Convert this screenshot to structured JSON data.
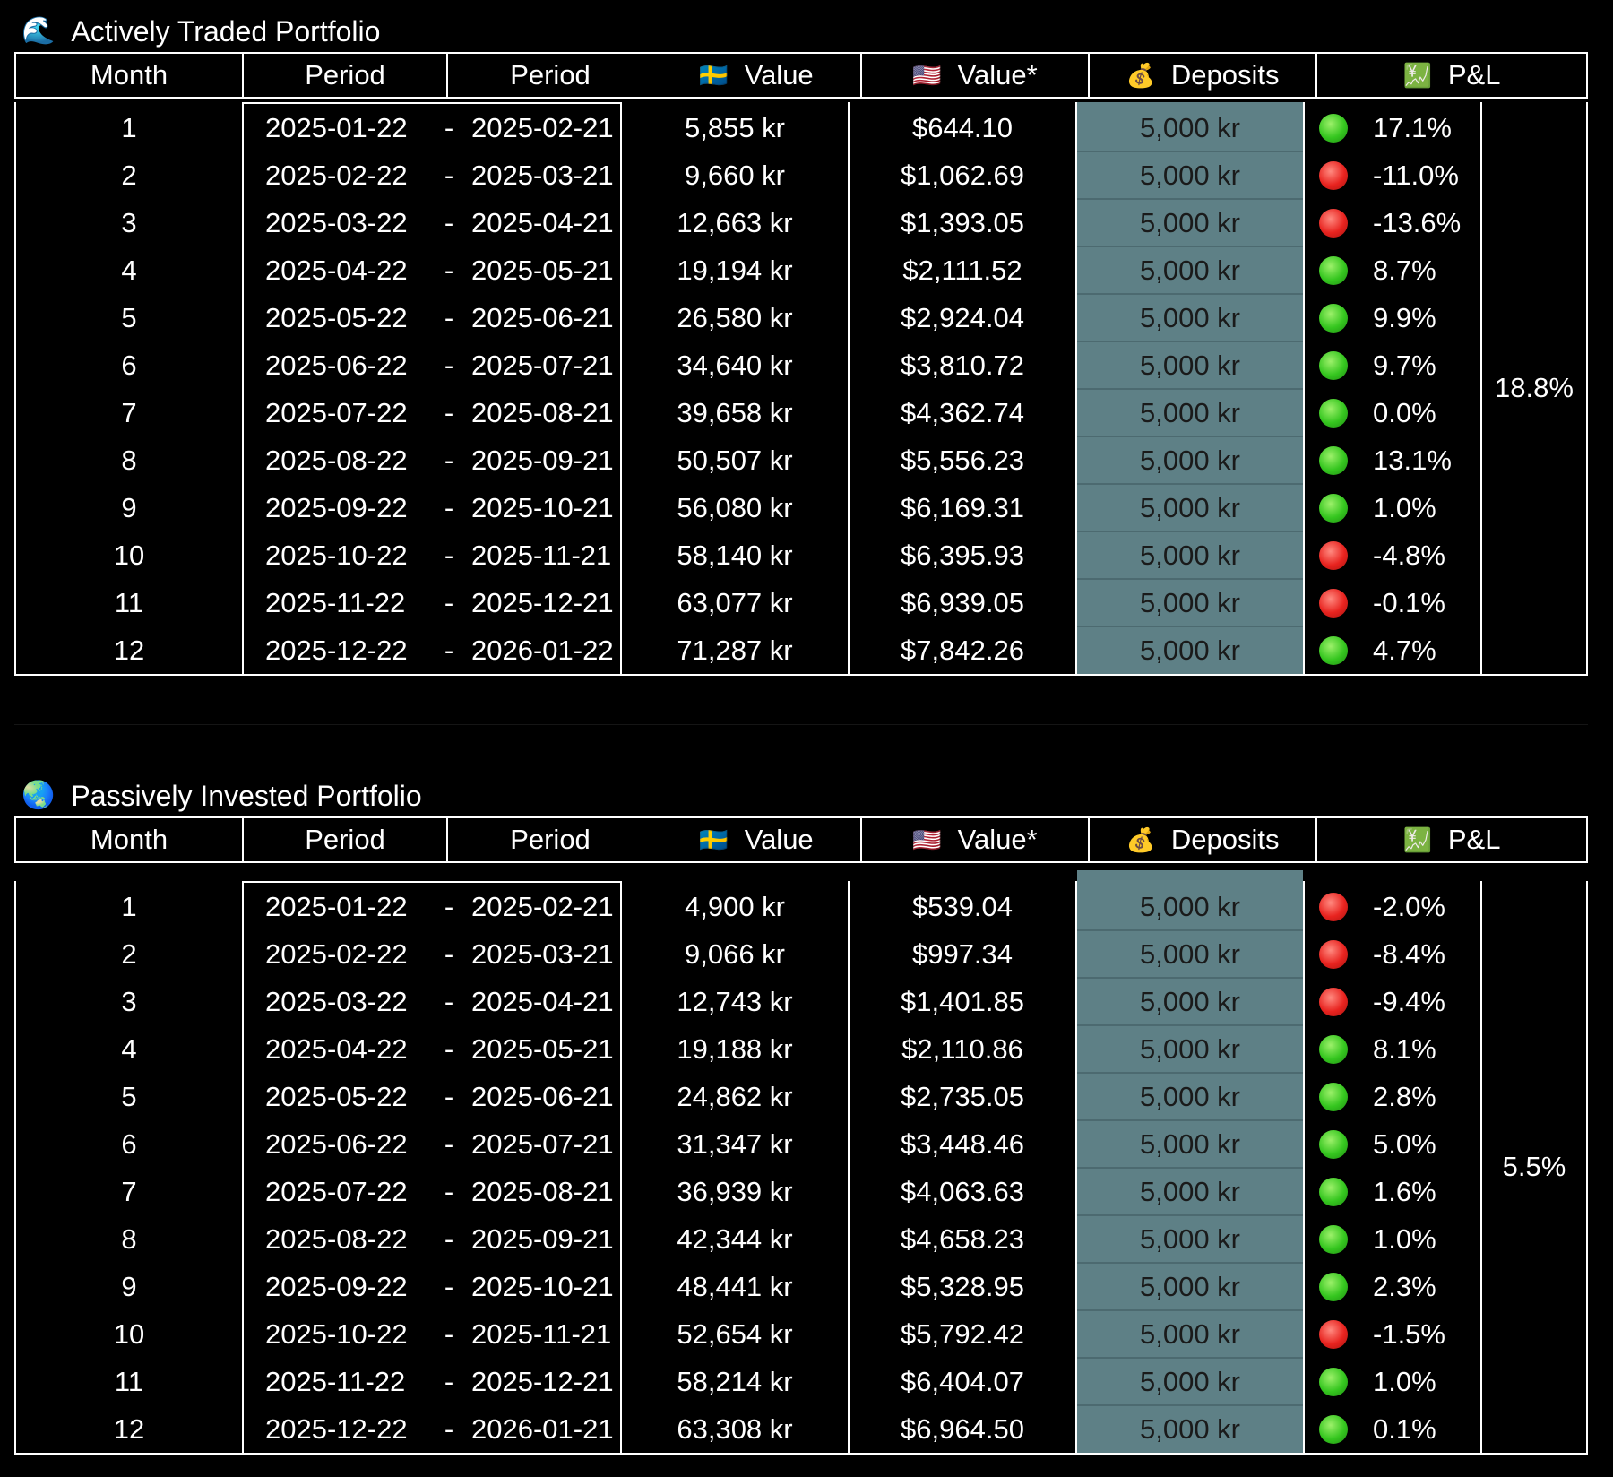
{
  "colors": {
    "background": "#000000",
    "deposit_fill": "#5e8086",
    "gain": "#35c61f",
    "loss": "#e8231f"
  },
  "header": {
    "month": "Month",
    "period_start": "Period",
    "period_end": "Period",
    "value_sek": "Value",
    "value_usd": "Value*",
    "deposits": "Deposits",
    "pnl": "P&L",
    "flag_se": "🇸🇪",
    "flag_us": "🇺🇸",
    "money_bag": "💰",
    "chart_icon": "💹"
  },
  "active": {
    "icon": "🌊",
    "title": "Actively Traded Portfolio",
    "total": "18.8%",
    "rows": [
      {
        "month": "1",
        "start": "2025-01-22",
        "sep": "-",
        "end": "2025-02-21",
        "sek": "5,855 kr",
        "usd": "$644.10",
        "dep": "5,000 kr",
        "status": "green",
        "pnl": "17.1%"
      },
      {
        "month": "2",
        "start": "2025-02-22",
        "sep": "-",
        "end": "2025-03-21",
        "sek": "9,660 kr",
        "usd": "$1,062.69",
        "dep": "5,000 kr",
        "status": "red",
        "pnl": "-11.0%"
      },
      {
        "month": "3",
        "start": "2025-03-22",
        "sep": "-",
        "end": "2025-04-21",
        "sek": "12,663 kr",
        "usd": "$1,393.05",
        "dep": "5,000 kr",
        "status": "red",
        "pnl": "-13.6%"
      },
      {
        "month": "4",
        "start": "2025-04-22",
        "sep": "-",
        "end": "2025-05-21",
        "sek": "19,194 kr",
        "usd": "$2,111.52",
        "dep": "5,000 kr",
        "status": "green",
        "pnl": "8.7%"
      },
      {
        "month": "5",
        "start": "2025-05-22",
        "sep": "-",
        "end": "2025-06-21",
        "sek": "26,580 kr",
        "usd": "$2,924.04",
        "dep": "5,000 kr",
        "status": "green",
        "pnl": "9.9%"
      },
      {
        "month": "6",
        "start": "2025-06-22",
        "sep": "-",
        "end": "2025-07-21",
        "sek": "34,640 kr",
        "usd": "$3,810.72",
        "dep": "5,000 kr",
        "status": "green",
        "pnl": "9.7%"
      },
      {
        "month": "7",
        "start": "2025-07-22",
        "sep": "-",
        "end": "2025-08-21",
        "sek": "39,658 kr",
        "usd": "$4,362.74",
        "dep": "5,000 kr",
        "status": "green",
        "pnl": "0.0%"
      },
      {
        "month": "8",
        "start": "2025-08-22",
        "sep": "-",
        "end": "2025-09-21",
        "sek": "50,507 kr",
        "usd": "$5,556.23",
        "dep": "5,000 kr",
        "status": "green",
        "pnl": "13.1%"
      },
      {
        "month": "9",
        "start": "2025-09-22",
        "sep": "-",
        "end": "2025-10-21",
        "sek": "56,080 kr",
        "usd": "$6,169.31",
        "dep": "5,000 kr",
        "status": "green",
        "pnl": "1.0%"
      },
      {
        "month": "10",
        "start": "2025-10-22",
        "sep": "-",
        "end": "2025-11-21",
        "sek": "58,140 kr",
        "usd": "$6,395.93",
        "dep": "5,000 kr",
        "status": "red",
        "pnl": "-4.8%"
      },
      {
        "month": "11",
        "start": "2025-11-22",
        "sep": "-",
        "end": "2025-12-21",
        "sek": "63,077 kr",
        "usd": "$6,939.05",
        "dep": "5,000 kr",
        "status": "red",
        "pnl": "-0.1%"
      },
      {
        "month": "12",
        "start": "2025-12-22",
        "sep": "-",
        "end": "2026-01-22",
        "sek": "71,287 kr",
        "usd": "$7,842.26",
        "dep": "5,000 kr",
        "status": "green",
        "pnl": "4.7%"
      }
    ]
  },
  "passive": {
    "icon": "🌏",
    "title": "Passively Invested Portfolio",
    "total": "5.5%",
    "rows": [
      {
        "month": "1",
        "start": "2025-01-22",
        "sep": "-",
        "end": "2025-02-21",
        "sek": "4,900 kr",
        "usd": "$539.04",
        "dep": "5,000 kr",
        "status": "red",
        "pnl": "-2.0%"
      },
      {
        "month": "2",
        "start": "2025-02-22",
        "sep": "-",
        "end": "2025-03-21",
        "sek": "9,066 kr",
        "usd": "$997.34",
        "dep": "5,000 kr",
        "status": "red",
        "pnl": "-8.4%"
      },
      {
        "month": "3",
        "start": "2025-03-22",
        "sep": "-",
        "end": "2025-04-21",
        "sek": "12,743 kr",
        "usd": "$1,401.85",
        "dep": "5,000 kr",
        "status": "red",
        "pnl": "-9.4%"
      },
      {
        "month": "4",
        "start": "2025-04-22",
        "sep": "-",
        "end": "2025-05-21",
        "sek": "19,188 kr",
        "usd": "$2,110.86",
        "dep": "5,000 kr",
        "status": "green",
        "pnl": "8.1%"
      },
      {
        "month": "5",
        "start": "2025-05-22",
        "sep": "-",
        "end": "2025-06-21",
        "sek": "24,862 kr",
        "usd": "$2,735.05",
        "dep": "5,000 kr",
        "status": "green",
        "pnl": "2.8%"
      },
      {
        "month": "6",
        "start": "2025-06-22",
        "sep": "-",
        "end": "2025-07-21",
        "sek": "31,347 kr",
        "usd": "$3,448.46",
        "dep": "5,000 kr",
        "status": "green",
        "pnl": "5.0%"
      },
      {
        "month": "7",
        "start": "2025-07-22",
        "sep": "-",
        "end": "2025-08-21",
        "sek": "36,939 kr",
        "usd": "$4,063.63",
        "dep": "5,000 kr",
        "status": "green",
        "pnl": "1.6%"
      },
      {
        "month": "8",
        "start": "2025-08-22",
        "sep": "-",
        "end": "2025-09-21",
        "sek": "42,344 kr",
        "usd": "$4,658.23",
        "dep": "5,000 kr",
        "status": "green",
        "pnl": "1.0%"
      },
      {
        "month": "9",
        "start": "2025-09-22",
        "sep": "-",
        "end": "2025-10-21",
        "sek": "48,441 kr",
        "usd": "$5,328.95",
        "dep": "5,000 kr",
        "status": "green",
        "pnl": "2.3%"
      },
      {
        "month": "10",
        "start": "2025-10-22",
        "sep": "-",
        "end": "2025-11-21",
        "sek": "52,654 kr",
        "usd": "$5,792.42",
        "dep": "5,000 kr",
        "status": "red",
        "pnl": "-1.5%"
      },
      {
        "month": "11",
        "start": "2025-11-22",
        "sep": "-",
        "end": "2025-12-21",
        "sek": "58,214 kr",
        "usd": "$6,404.07",
        "dep": "5,000 kr",
        "status": "green",
        "pnl": "1.0%"
      },
      {
        "month": "12",
        "start": "2025-12-22",
        "sep": "-",
        "end": "2026-01-21",
        "sek": "63,308 kr",
        "usd": "$6,964.50",
        "dep": "5,000 kr",
        "status": "green",
        "pnl": "0.1%"
      }
    ]
  }
}
